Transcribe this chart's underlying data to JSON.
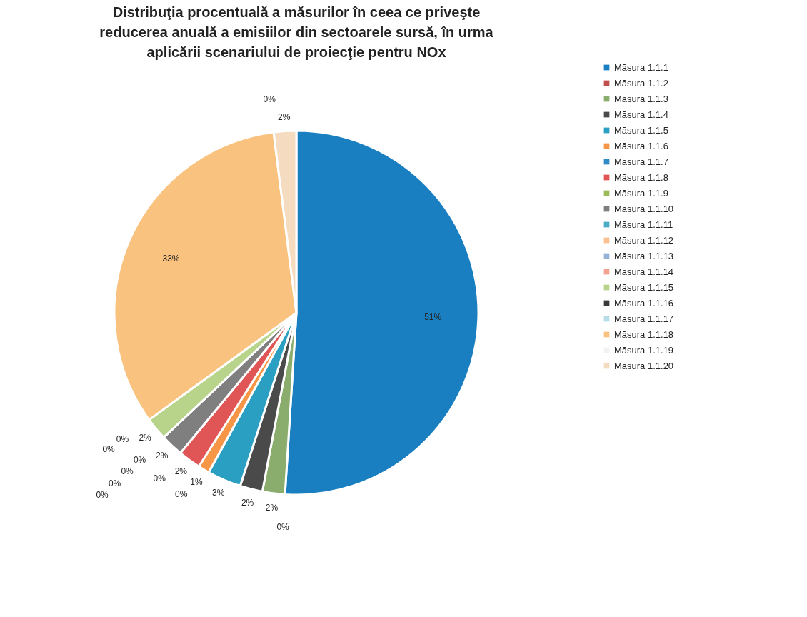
{
  "chart_data": {
    "type": "pie",
    "title": "Distribuţia procentuală a măsurilor în ceea ce priveşte reducerea anuală a emisiilor din sectoarele sursă, în urma aplicării scenariului de proiecţie pentru NOx",
    "categories": [
      "Măsura 1.1.1",
      "Măsura 1.1.2",
      "Măsura 1.1.3",
      "Măsura 1.1.4",
      "Măsura 1.1.5",
      "Măsura 1.1.6",
      "Măsura 1.1.7",
      "Măsura 1.1.8",
      "Măsura 1.1.9",
      "Măsura 1.1.10",
      "Măsura 1.1.11",
      "Măsura 1.1.12",
      "Măsura 1.1.13",
      "Măsura 1.1.14",
      "Măsura 1.1.15",
      "Măsura 1.1.16",
      "Măsura 1.1.17",
      "Măsura 1.1.18",
      "Măsura 1.1.19",
      "Măsura 1.1.20"
    ],
    "values": [
      51,
      0,
      2,
      2,
      3,
      1,
      0,
      2,
      0,
      2,
      0,
      0,
      0,
      0,
      2,
      0,
      0,
      33,
      0,
      2
    ],
    "value_labels": [
      "51%",
      "0%",
      "2%",
      "2%",
      "3%",
      "1%",
      "0%",
      "2%",
      "0%",
      "2%",
      "0%",
      "0%",
      "0%",
      "0%",
      "2%",
      "0%",
      "0%",
      "33%",
      "0%",
      "2%"
    ],
    "colors": [
      "#1a7fc1",
      "#c0504d",
      "#8aac6c",
      "#4a4a4a",
      "#2a9fc2",
      "#f79646",
      "#2e8bc6",
      "#e05555",
      "#9bbb59",
      "#7f7f7f",
      "#4bacc6",
      "#fac08f",
      "#95b3d7",
      "#f2a490",
      "#b8d38a",
      "#3a3a3a",
      "#b7dee8",
      "#f9c37f",
      "#f2f2f2",
      "#f5dcc0"
    ],
    "legend": "right"
  }
}
